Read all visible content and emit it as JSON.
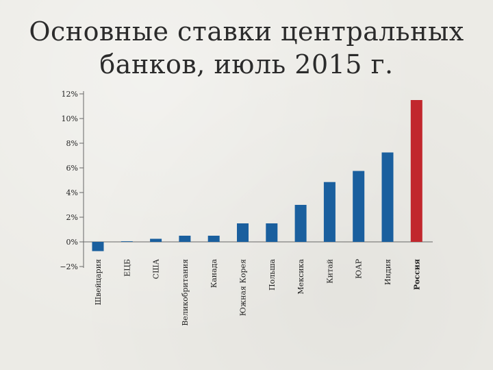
{
  "title": {
    "line1": "Основные ставки центральных",
    "line2": "банков, июль 2015 г."
  },
  "chart_data": {
    "type": "bar",
    "title": "Основные ставки центральных банков, июль 2015 г.",
    "xlabel": "",
    "ylabel": "",
    "ylim": [
      -2,
      12
    ],
    "yticks": [
      {
        "value": 12,
        "label": "12%"
      },
      {
        "value": 10,
        "label": "10%"
      },
      {
        "value": 8,
        "label": "8%"
      },
      {
        "value": 6,
        "label": "6%"
      },
      {
        "value": 4,
        "label": "4%"
      },
      {
        "value": 2,
        "label": "2%"
      },
      {
        "value": 0,
        "label": "0%"
      },
      {
        "value": -2,
        "label": "−2%"
      }
    ],
    "categories": [
      "Швейцария",
      "ЕЦБ",
      "США",
      "Великобритания",
      "Канада",
      "Южная Корея",
      "Польша",
      "Мексика",
      "Китай",
      "ЮАР",
      "Индия",
      "Россия"
    ],
    "values": [
      -0.75,
      0.05,
      0.25,
      0.5,
      0.5,
      1.5,
      1.5,
      3.0,
      4.85,
      5.75,
      7.25,
      11.5
    ],
    "colors": [
      "#1a5f9e",
      "#1a5f9e",
      "#1a5f9e",
      "#1a5f9e",
      "#1a5f9e",
      "#1a5f9e",
      "#1a5f9e",
      "#1a5f9e",
      "#1a5f9e",
      "#1a5f9e",
      "#1a5f9e",
      "#c1272d"
    ],
    "highlight_category": "Россия",
    "grid": false,
    "legend": "none"
  }
}
